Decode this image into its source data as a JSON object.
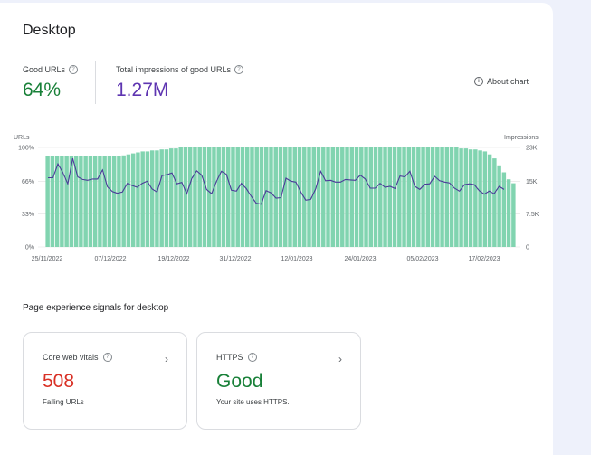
{
  "card": {
    "title": "Desktop"
  },
  "metrics": {
    "good_urls_label": "Good URLs",
    "good_urls_value": "64%",
    "impressions_label": "Total impressions of good URLs",
    "impressions_value": "1.27M",
    "good_color": "#188038",
    "impressions_color": "#5e35b1"
  },
  "about_chart": "About chart",
  "chart_data": {
    "type": "bar",
    "left_axis_label": "URLs",
    "right_axis_label": "Impressions",
    "y_ticks_left": [
      "100%",
      "66%",
      "33%",
      "0%"
    ],
    "y_ticks_right": [
      "23K",
      "15K",
      "7.5K",
      "0"
    ],
    "ylim_left": [
      0,
      100
    ],
    "ylim_right": [
      0,
      23000
    ],
    "x_tick_labels": [
      "25/11/2022",
      "07/12/2022",
      "19/12/2022",
      "31/12/2022",
      "12/01/2023",
      "24/01/2023",
      "05/02/2023",
      "17/02/2023"
    ],
    "bar_color": "#81d4b0",
    "line_color": "#4b3b99",
    "series": [
      {
        "name": "Good URLs",
        "values": [
          91,
          91,
          91,
          91,
          91,
          91,
          91,
          91,
          91,
          91,
          91,
          91,
          91,
          91,
          91,
          91,
          92,
          93,
          94,
          95,
          96,
          96,
          97,
          97,
          98,
          98,
          99,
          99,
          100,
          100,
          100,
          100,
          100,
          100,
          100,
          100,
          100,
          100,
          100,
          100,
          100,
          100,
          100,
          100,
          100,
          100,
          100,
          100,
          100,
          100,
          100,
          100,
          100,
          100,
          100,
          100,
          100,
          100,
          100,
          100,
          100,
          100,
          100,
          100,
          100,
          100,
          100,
          100,
          100,
          100,
          100,
          100,
          100,
          100,
          100,
          100,
          100,
          100,
          100,
          100,
          100,
          100,
          100,
          100,
          100,
          100,
          100,
          99,
          99,
          98,
          98,
          97,
          96,
          93,
          89,
          82,
          75,
          68,
          64
        ]
      },
      {
        "name": "Impressions",
        "values": [
          16000,
          16000,
          19200,
          17200,
          14600,
          20500,
          16200,
          15600,
          15400,
          15700,
          15700,
          17800,
          13900,
          12800,
          12400,
          12700,
          14700,
          14200,
          13800,
          14700,
          15200,
          13400,
          12700,
          16500,
          16700,
          17100,
          14600,
          14900,
          12300,
          15800,
          17600,
          16600,
          13300,
          12300,
          15200,
          17500,
          16800,
          13100,
          12900,
          14700,
          13500,
          11700,
          10100,
          9900,
          13000,
          12500,
          11300,
          11400,
          15900,
          15200,
          15000,
          12700,
          10800,
          11000,
          13400,
          17500,
          15300,
          15400,
          15000,
          15000,
          15600,
          15500,
          15400,
          16600,
          15700,
          13600,
          13600,
          14700,
          13800,
          14000,
          13500,
          16400,
          16200,
          17500,
          14000,
          13300,
          14500,
          14600,
          16300,
          15300,
          15000,
          14800,
          13600,
          12900,
          14400,
          14600,
          14400,
          13000,
          12200,
          12900,
          12300,
          14000,
          13300
        ]
      }
    ]
  },
  "section_title": "Page experience signals for desktop",
  "signals": [
    {
      "label": "Core web vitals",
      "value": "508",
      "desc": "Failing URLs",
      "color": "#d93025"
    },
    {
      "label": "HTTPS",
      "value": "Good",
      "desc": "Your site uses HTTPS.",
      "color": "#188038"
    }
  ]
}
